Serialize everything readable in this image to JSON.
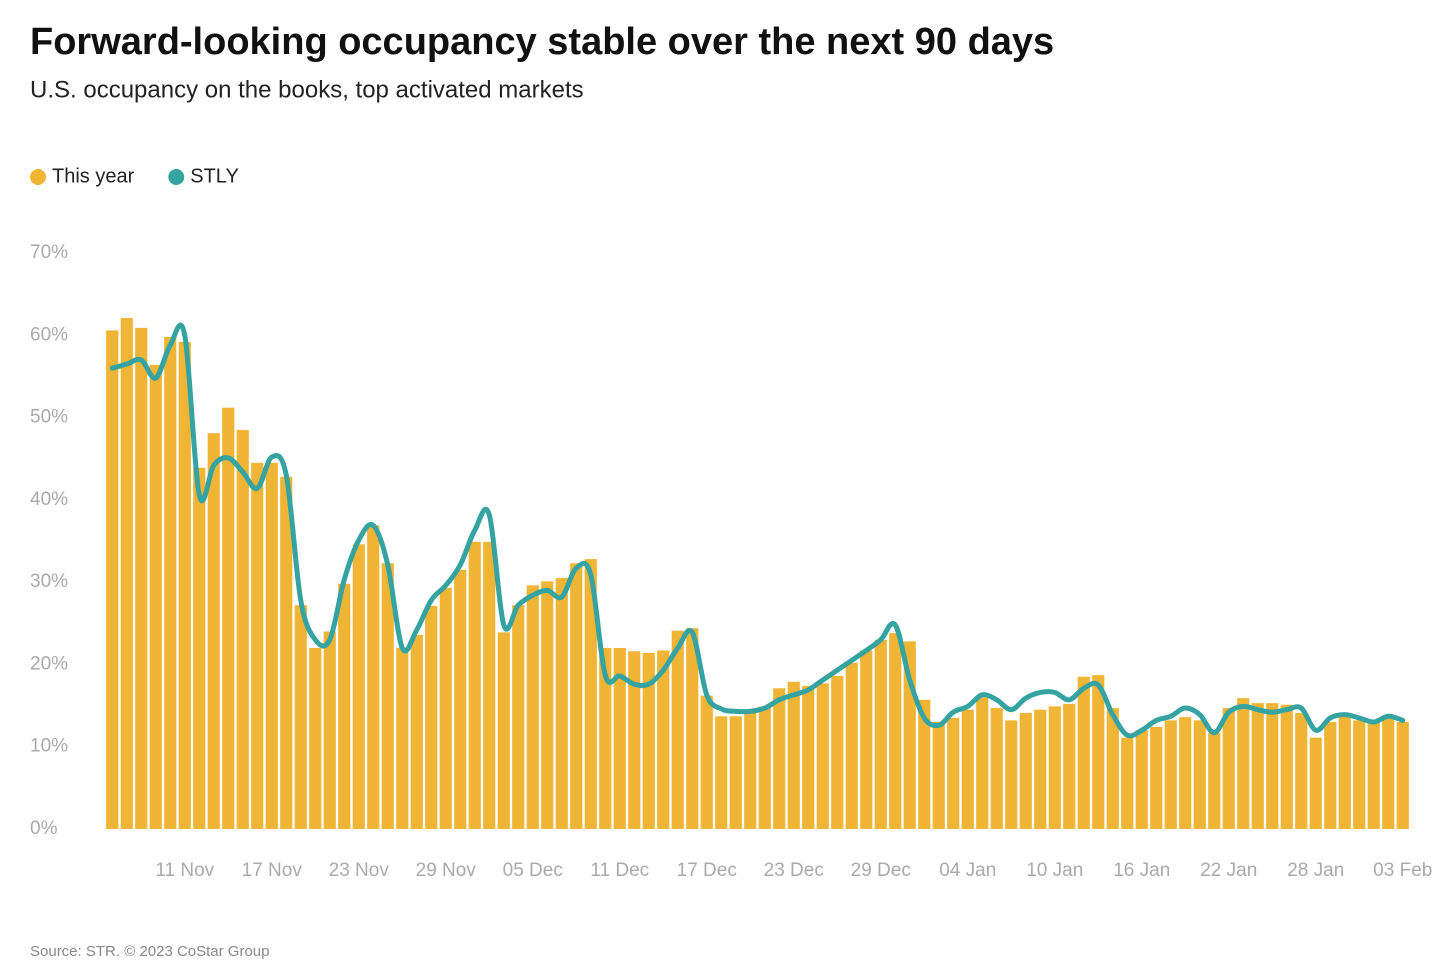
{
  "chart_data": {
    "type": "bar_line",
    "title": "Forward-looking occupancy stable over the next 90 days",
    "subtitle": "U.S. occupancy on the books, top activated markets",
    "source": "Source: STR. © 2023 CoStar Group",
    "categories": [
      null,
      null,
      null,
      null,
      null,
      "11 Nov",
      null,
      null,
      null,
      null,
      null,
      "17 Nov",
      null,
      null,
      null,
      null,
      null,
      "23 Nov",
      null,
      null,
      null,
      null,
      null,
      "29 Nov",
      null,
      null,
      null,
      null,
      null,
      "05 Dec",
      null,
      null,
      null,
      null,
      null,
      "11 Dec",
      null,
      null,
      null,
      null,
      null,
      "17 Dec",
      null,
      null,
      null,
      null,
      null,
      "23 Dec",
      null,
      null,
      null,
      null,
      null,
      "29 Dec",
      null,
      null,
      null,
      null,
      null,
      "04 Jan",
      null,
      null,
      null,
      null,
      null,
      "10 Jan",
      null,
      null,
      null,
      null,
      null,
      "16 Jan",
      null,
      null,
      null,
      null,
      null,
      "22 Jan",
      null,
      null,
      null,
      null,
      null,
      "28 Jan",
      null,
      null,
      null,
      null,
      null,
      "03 Feb"
    ],
    "series": [
      {
        "name": "This year",
        "type": "bar",
        "color": "#f0b535",
        "values": [
          60.6,
          62.1,
          60.9,
          56.4,
          59.8,
          59.2,
          43.9,
          48.1,
          51.2,
          48.5,
          44.5,
          44.5,
          42.8,
          27.2,
          22.0,
          24.0,
          29.8,
          34.6,
          36.9,
          32.3,
          22.0,
          23.6,
          27.1,
          29.3,
          31.5,
          34.9,
          34.9,
          23.9,
          27.2,
          29.6,
          30.1,
          30.5,
          32.3,
          32.8,
          22.0,
          22.0,
          21.6,
          21.4,
          21.7,
          24.1,
          24.4,
          16.2,
          13.7,
          13.7,
          14.1,
          14.9,
          17.1,
          17.9,
          17.4,
          17.7,
          18.6,
          20.2,
          21.7,
          23.0,
          23.8,
          22.8,
          15.7,
          13.0,
          13.5,
          14.5,
          16.0,
          14.7,
          13.2,
          14.1,
          14.5,
          14.9,
          15.2,
          18.5,
          18.7,
          14.7,
          11.1,
          12.0,
          12.4,
          13.2,
          13.6,
          13.2,
          11.7,
          14.7,
          15.9,
          15.3,
          15.3,
          15.1,
          14.1,
          11.1,
          13.0,
          13.7,
          13.2,
          12.9,
          13.5,
          13.0
        ]
      },
      {
        "name": "STLY",
        "type": "line",
        "color": "#36a3a3",
        "values": [
          56.0,
          56.5,
          57.0,
          54.8,
          58.8,
          60.0,
          40.6,
          44.2,
          45.1,
          43.4,
          41.4,
          45.2,
          43.0,
          27.8,
          23.0,
          23.0,
          30.3,
          35.1,
          36.9,
          32.1,
          22.0,
          24.2,
          27.8,
          29.6,
          32.1,
          36.3,
          38.2,
          24.8,
          27.2,
          28.4,
          29.0,
          28.2,
          31.7,
          30.9,
          18.7,
          18.6,
          17.6,
          17.6,
          19.3,
          22.0,
          23.9,
          16.3,
          14.6,
          14.3,
          14.3,
          14.7,
          15.7,
          16.3,
          16.9,
          18.1,
          19.3,
          20.5,
          21.7,
          23.0,
          24.8,
          18.1,
          13.5,
          12.6,
          14.2,
          14.9,
          16.3,
          15.7,
          14.5,
          15.9,
          16.6,
          16.6,
          15.7,
          17.1,
          17.5,
          13.9,
          11.4,
          12.0,
          13.2,
          13.7,
          14.7,
          13.9,
          11.7,
          14.2,
          14.9,
          14.5,
          14.2,
          14.5,
          14.7,
          12.0,
          13.5,
          13.9,
          13.5,
          13.0,
          13.7,
          13.2
        ]
      }
    ],
    "ylim": [
      0,
      70
    ],
    "yticks": [
      {
        "value": 0,
        "label": "0%"
      },
      {
        "value": 10,
        "label": "10%"
      },
      {
        "value": 20,
        "label": "20%"
      },
      {
        "value": 30,
        "label": "30%"
      },
      {
        "value": 40,
        "label": "40%"
      },
      {
        "value": 50,
        "label": "50%"
      },
      {
        "value": 60,
        "label": "60%"
      },
      {
        "value": 70,
        "label": "70%"
      }
    ],
    "grid": false
  }
}
